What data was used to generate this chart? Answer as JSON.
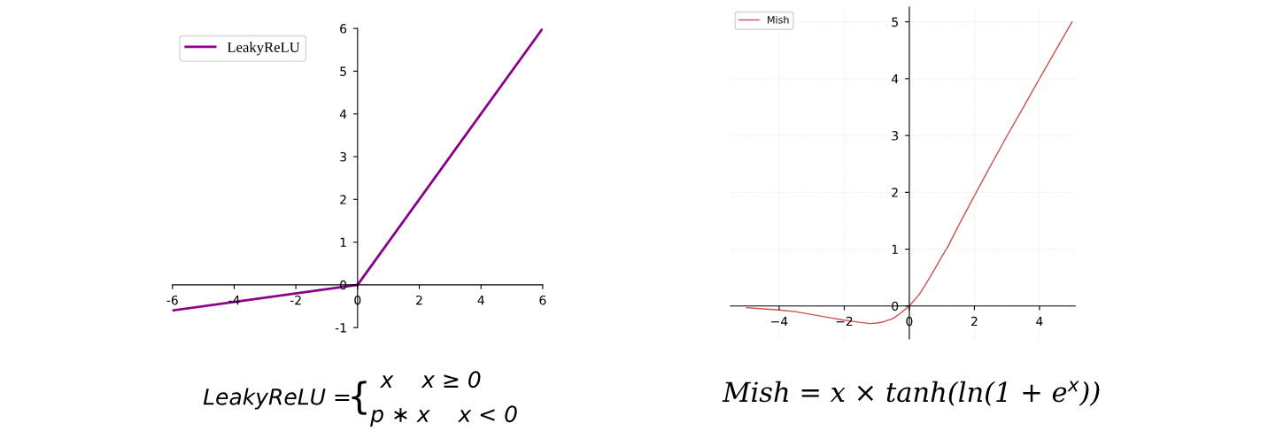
{
  "chart_data": [
    {
      "type": "line",
      "x": [
        -6,
        0,
        6
      ],
      "series": [
        {
          "name": "LeakyReLU",
          "color": "#8b008b",
          "values": [
            -0.6,
            0,
            6
          ]
        }
      ],
      "xlim": [
        -6,
        6
      ],
      "ylim": [
        -1,
        6
      ],
      "xticks": [
        -6,
        -4,
        -2,
        0,
        2,
        4,
        6
      ],
      "yticks": [
        -1,
        0,
        1,
        2,
        3,
        4,
        5,
        6
      ],
      "grid": false,
      "legend": "top left",
      "annotations": [
        "LeakyReLU =",
        "{",
        "x    x ≥ 0",
        "p ∗ x    x < 0"
      ]
    },
    {
      "type": "line",
      "x": [
        -5,
        -4.5,
        -4,
        -3.5,
        -3,
        -2.5,
        -2,
        -1.5,
        -1.2,
        -1,
        -0.8,
        -0.5,
        -0.3,
        0,
        0.3,
        0.5,
        0.7,
        1,
        1.2,
        1.5,
        2,
        2.5,
        3,
        3.5,
        4,
        4.5,
        5
      ],
      "series": [
        {
          "name": "Mish",
          "color": "#d0504f",
          "values": [
            -0.03,
            -0.05,
            -0.07,
            -0.1,
            -0.15,
            -0.2,
            -0.25,
            -0.29,
            -0.31,
            -0.3,
            -0.28,
            -0.22,
            -0.14,
            0,
            0.2,
            0.38,
            0.57,
            0.87,
            1.06,
            1.4,
            1.94,
            2.47,
            2.99,
            3.49,
            4.0,
            4.5,
            5.0
          ]
        }
      ],
      "xlim": [
        -5.5,
        5.1
      ],
      "ylim": [
        -0.58,
        5.26
      ],
      "xticks": [
        {
          "value": -4,
          "label": "−4"
        },
        {
          "value": -2,
          "label": "−2"
        },
        0,
        2,
        4
      ],
      "yticks": [
        0,
        1,
        2,
        3,
        4,
        5
      ],
      "grid": true,
      "legend": "top left",
      "annotations": [
        "Mish = x × tanh(ln(1 + e$^{x}$))"
      ]
    }
  ]
}
